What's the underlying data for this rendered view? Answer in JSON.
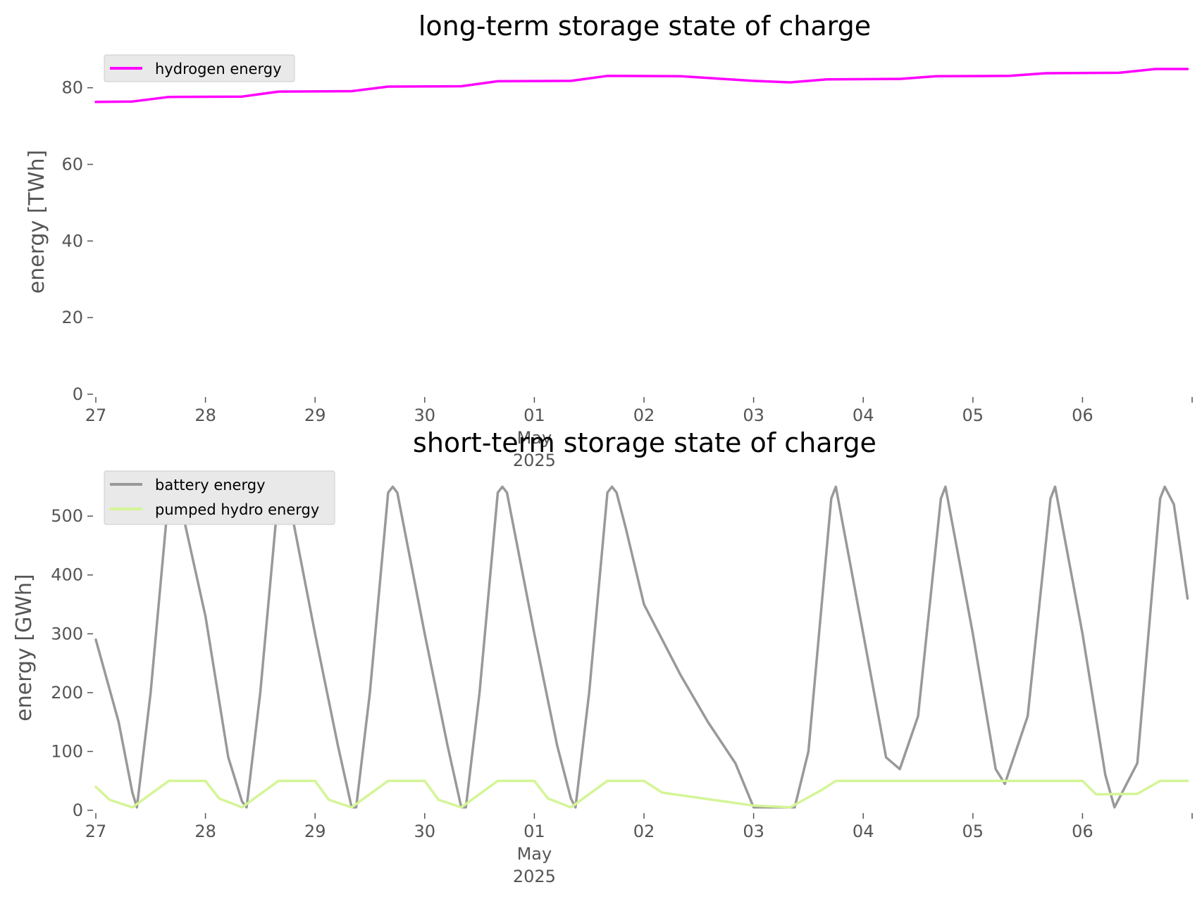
{
  "chart_data": [
    {
      "type": "line",
      "title": "long-term storage state of charge",
      "ylabel": "energy [TWh]",
      "xlabel": "",
      "ylim": [
        0,
        86
      ],
      "yticks": [
        0,
        20,
        40,
        60,
        80
      ],
      "xticks": [
        "27",
        "28",
        "29",
        "30",
        "01",
        "02",
        "03",
        "04",
        "05",
        "06"
      ],
      "x_sublabels": [
        "May",
        "2025"
      ],
      "x_sublabel_tick": "01",
      "x": [
        "Apr 27 00:00",
        "Apr 27 08:00",
        "Apr 27 16:00",
        "Apr 28 08:00",
        "Apr 28 16:00",
        "Apr 29 08:00",
        "Apr 29 16:00",
        "Apr 30 08:00",
        "Apr 30 16:00",
        "May 01 08:00",
        "May 01 16:00",
        "May 02 08:00",
        "May 03 00:00",
        "May 03 08:00",
        "May 03 16:00",
        "May 04 08:00",
        "May 04 16:00",
        "May 05 08:00",
        "May 05 16:00",
        "May 06 08:00",
        "May 06 16:00",
        "May 06 23:00"
      ],
      "legend": "upper-left",
      "grid": false,
      "series": [
        {
          "name": "hydrogen energy",
          "color": "#ff00ff",
          "values": [
            76.3,
            76.4,
            77.6,
            77.7,
            79.0,
            79.1,
            80.3,
            80.4,
            81.7,
            81.8,
            83.1,
            83.0,
            81.8,
            81.4,
            82.2,
            82.3,
            83.0,
            83.1,
            83.8,
            83.9,
            84.9,
            84.9
          ]
        }
      ]
    },
    {
      "type": "line",
      "title": "short-term storage state of charge",
      "ylabel": "energy [GWh]",
      "xlabel": "",
      "ylim": [
        0,
        560
      ],
      "yticks": [
        0,
        100,
        200,
        300,
        400,
        500
      ],
      "xticks": [
        "27",
        "28",
        "29",
        "30",
        "01",
        "02",
        "03",
        "04",
        "05",
        "06"
      ],
      "x_sublabels": [
        "May",
        "2025"
      ],
      "x_sublabel_tick": "01",
      "legend": "upper-left",
      "grid": false,
      "series": [
        {
          "name": "battery energy",
          "color": "#999999",
          "x": [
            "Apr 27 00:00",
            "Apr 27 05:00",
            "Apr 27 08:00",
            "Apr 27 09:00",
            "Apr 27 12:00",
            "Apr 27 16:00",
            "Apr 27 17:00",
            "Apr 27 18:00",
            "Apr 28 00:00",
            "Apr 28 05:00",
            "Apr 28 08:00",
            "Apr 28 09:00",
            "Apr 28 12:00",
            "Apr 28 16:00",
            "Apr 28 17:00",
            "Apr 28 18:00",
            "Apr 29 00:00",
            "Apr 29 05:00",
            "Apr 29 08:00",
            "Apr 29 09:00",
            "Apr 29 12:00",
            "Apr 29 16:00",
            "Apr 29 17:00",
            "Apr 29 18:00",
            "Apr 30 00:00",
            "Apr 30 05:00",
            "Apr 30 08:00",
            "Apr 30 09:00",
            "Apr 30 12:00",
            "Apr 30 16:00",
            "Apr 30 17:00",
            "Apr 30 18:00",
            "May 01 00:00",
            "May 01 05:00",
            "May 01 08:00",
            "May 01 09:00",
            "May 01 12:00",
            "May 01 16:00",
            "May 01 17:00",
            "May 01 18:00",
            "May 01 20:00",
            "May 02 00:00",
            "May 02 08:00",
            "May 02 14:00",
            "May 02 20:00",
            "May 03 00:00",
            "May 03 07:00",
            "May 03 09:00",
            "May 03 12:00",
            "May 03 17:00",
            "May 03 18:00",
            "May 04 00:00",
            "May 04 05:00",
            "May 04 08:00",
            "May 04 12:00",
            "May 04 17:00",
            "May 04 18:00",
            "May 05 00:00",
            "May 05 05:00",
            "May 05 07:00",
            "May 05 12:00",
            "May 05 17:00",
            "May 05 18:00",
            "May 06 00:00",
            "May 06 05:00",
            "May 06 07:00",
            "May 06 12:00",
            "May 06 17:00",
            "May 06 18:00",
            "May 06 20:00",
            "May 06 23:00"
          ],
          "values": [
            290,
            150,
            30,
            5,
            200,
            540,
            550,
            540,
            330,
            90,
            15,
            5,
            200,
            540,
            550,
            540,
            300,
            110,
            5,
            5,
            200,
            540,
            550,
            540,
            300,
            110,
            5,
            5,
            200,
            540,
            550,
            540,
            300,
            110,
            20,
            5,
            200,
            540,
            550,
            540,
            480,
            350,
            230,
            150,
            80,
            5,
            5,
            5,
            100,
            530,
            550,
            300,
            90,
            70,
            160,
            530,
            550,
            300,
            70,
            45,
            160,
            530,
            550,
            300,
            60,
            5,
            80,
            530,
            550,
            520,
            360
          ]
        },
        {
          "name": "pumped hydro energy",
          "color": "#d4f596",
          "x": [
            "Apr 27 00:00",
            "Apr 27 03:00",
            "Apr 27 08:00",
            "Apr 27 16:00",
            "Apr 28 00:00",
            "Apr 28 03:00",
            "Apr 28 08:00",
            "Apr 28 16:00",
            "Apr 29 00:00",
            "Apr 29 03:00",
            "Apr 29 08:00",
            "Apr 29 16:00",
            "Apr 30 00:00",
            "Apr 30 03:00",
            "Apr 30 08:00",
            "Apr 30 16:00",
            "May 01 00:00",
            "May 01 03:00",
            "May 01 08:00",
            "May 01 16:00",
            "May 02 00:00",
            "May 02 04:00",
            "May 03 00:00",
            "May 03 08:00",
            "May 03 15:00",
            "May 03 18:00",
            "May 05 00:00",
            "May 05 18:00",
            "May 06 00:00",
            "May 06 03:00",
            "May 06 12:00",
            "May 06 17:00",
            "May 06 23:00"
          ],
          "values": [
            40,
            18,
            5,
            50,
            50,
            20,
            5,
            50,
            50,
            18,
            5,
            50,
            50,
            18,
            5,
            50,
            50,
            20,
            5,
            50,
            50,
            30,
            8,
            5,
            35,
            50,
            50,
            50,
            50,
            27,
            28,
            50,
            50
          ]
        }
      ]
    }
  ]
}
